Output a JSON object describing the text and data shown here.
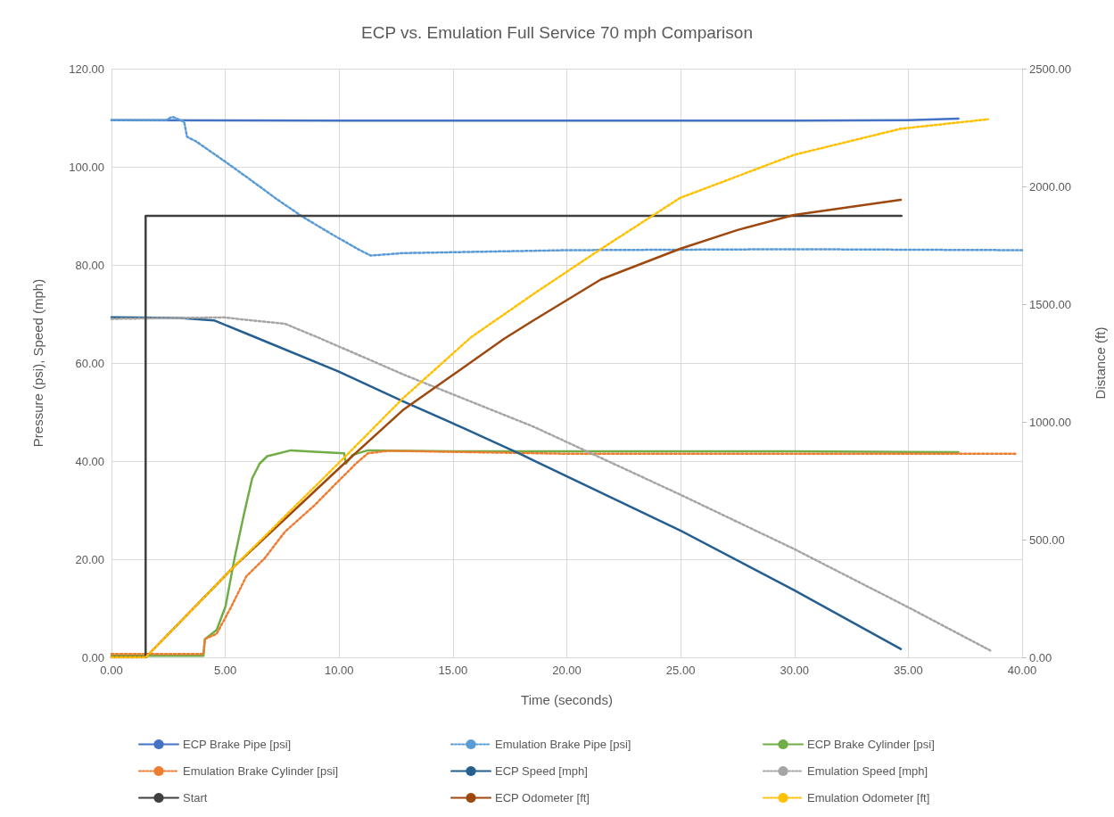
{
  "chart_data": {
    "type": "line",
    "title": "ECP vs. Emulation Full Service 70 mph Comparison",
    "xlabel": "Time (seconds)",
    "ylabel": "Pressure (psi), Speed (mph)",
    "y2label": "Distance (ft)",
    "xlim": [
      0,
      40
    ],
    "xticks": [
      {
        "value": 0,
        "label": "0.00"
      },
      {
        "value": 5,
        "label": "5.00"
      },
      {
        "value": 10,
        "label": "10.00"
      },
      {
        "value": 15,
        "label": "15.00"
      },
      {
        "value": 20,
        "label": "20.00"
      },
      {
        "value": 25,
        "label": "25.00"
      },
      {
        "value": 30,
        "label": "30.00"
      },
      {
        "value": 35,
        "label": "35.00"
      },
      {
        "value": 40,
        "label": "40.00"
      }
    ],
    "ylim": [
      0,
      120
    ],
    "yticks": [
      {
        "value": 0,
        "label": "0.00"
      },
      {
        "value": 20,
        "label": "20.00"
      },
      {
        "value": 40,
        "label": "40.00"
      },
      {
        "value": 60,
        "label": "60.00"
      },
      {
        "value": 80,
        "label": "80.00"
      },
      {
        "value": 100,
        "label": "100.00"
      },
      {
        "value": 120,
        "label": "120.00"
      }
    ],
    "y2lim": [
      0,
      2500
    ],
    "y2ticks": [
      {
        "value": 0,
        "label": "0.00"
      },
      {
        "value": 500,
        "label": "500.00"
      },
      {
        "value": 1000,
        "label": "1000.00"
      },
      {
        "value": 1500,
        "label": "1500.00"
      },
      {
        "value": 2000,
        "label": "2000.00"
      },
      {
        "value": 2500,
        "label": "2500.00"
      }
    ],
    "grid": true,
    "legend": "bottom",
    "marker": "none",
    "series": [
      {
        "name": "ECP Brake Pipe [psi]",
        "color": "#4472c4",
        "line_style": "solid",
        "x": [
          0,
          10,
          20,
          30,
          35,
          37.2
        ],
        "values": [
          109.5,
          109.4,
          109.4,
          109.4,
          109.5,
          109.8
        ]
      },
      {
        "name": "Emulation Brake Pipe [psi]",
        "color": "#5b9bd5",
        "line_style": "dotted",
        "x": [
          0,
          2.4,
          2.67,
          3.19,
          3.32,
          3.71,
          5.01,
          6.18,
          7.23,
          8.4,
          9.7,
          10.87,
          11.39,
          12.8,
          20,
          30,
          40
        ],
        "values": [
          109.5,
          109.5,
          110.2,
          109.2,
          106.1,
          105.2,
          101,
          97.1,
          93.5,
          89.8,
          86.2,
          83.1,
          81.9,
          82.4,
          83,
          83.2,
          83
        ]
      },
      {
        "name": "ECP Brake Cylinder [psi]",
        "color": "#70ad47",
        "line_style": "solid",
        "x": [
          0,
          4.04,
          4.1,
          4.62,
          5.01,
          5.4,
          5.79,
          6.18,
          6.51,
          6.84,
          7.88,
          8.92,
          10.22,
          10.3,
          10.6,
          11.26,
          15,
          20,
          25,
          30,
          37.2
        ],
        "values": [
          0.3,
          0.3,
          3.7,
          5.6,
          10.4,
          20.1,
          28.6,
          36.5,
          39.5,
          41,
          42.2,
          41.9,
          41.6,
          39.5,
          41.3,
          42.2,
          42,
          42,
          42,
          42,
          41.8
        ]
      },
      {
        "name": "Emulation Brake Cylinder [psi]",
        "color": "#ed7d31",
        "line_style": "dotted",
        "x": [
          0,
          4.04,
          4.1,
          4.62,
          5.27,
          5.92,
          6.71,
          7.62,
          8.92,
          9.96,
          10.74,
          11.26,
          12.2,
          20,
          30,
          39.7
        ],
        "values": [
          0.7,
          0.7,
          3.7,
          4.8,
          10.4,
          16.5,
          20.1,
          25.6,
          31,
          35.9,
          39.5,
          41.6,
          42.1,
          41.5,
          41.5,
          41.5
        ]
      },
      {
        "name": "ECP Speed [mph]",
        "color": "#255e91",
        "line_style": "solid",
        "x": [
          0,
          3,
          4.5,
          6.45,
          9.96,
          12.8,
          15.43,
          18.03,
          18.55,
          24.97,
          29.98,
          34.67
        ],
        "values": [
          69.3,
          69.2,
          68.7,
          65,
          58.3,
          52.2,
          46.8,
          41.3,
          40.1,
          25.9,
          13.7,
          1.7
        ]
      },
      {
        "name": "Emulation Speed [mph]",
        "color": "#a5a5a5",
        "line_style": "dotted",
        "x": [
          0,
          4.9,
          7.62,
          9.18,
          12.8,
          15.43,
          18.55,
          24.97,
          29.98,
          35,
          38.6
        ],
        "values": [
          69,
          69.3,
          68,
          65,
          57.7,
          52.8,
          47,
          33.2,
          22.1,
          10.2,
          1.4
        ]
      },
      {
        "name": "Start",
        "color": "#404040",
        "line_style": "solid",
        "x": [
          0,
          1.5,
          1.5,
          34.7
        ],
        "values": [
          0,
          0,
          90,
          90
        ]
      },
      {
        "name": "ECP Odometer [ft]",
        "color": "#9e480e",
        "line_style": "solid",
        "axis": "y2",
        "x": [
          0,
          1.5,
          5.4,
          10.22,
          12.8,
          17.25,
          18.55,
          21.5,
          24.97,
          27.5,
          29.98,
          34.67
        ],
        "values": [
          0,
          0,
          387,
          823,
          1050,
          1353,
          1432,
          1605,
          1735,
          1815,
          1879,
          1943
        ]
      },
      {
        "name": "Emulation Odometer [ft]",
        "color": "#ffc000",
        "line_style": "dotted",
        "axis": "y2",
        "x": [
          0,
          1.5,
          5.4,
          10.22,
          12.8,
          15.8,
          18.55,
          21.4,
          24.97,
          29.98,
          34.67,
          38.5
        ],
        "values": [
          0,
          0,
          387,
          848,
          1100,
          1360,
          1544,
          1728,
          1951,
          2134,
          2245,
          2285
        ]
      }
    ]
  }
}
